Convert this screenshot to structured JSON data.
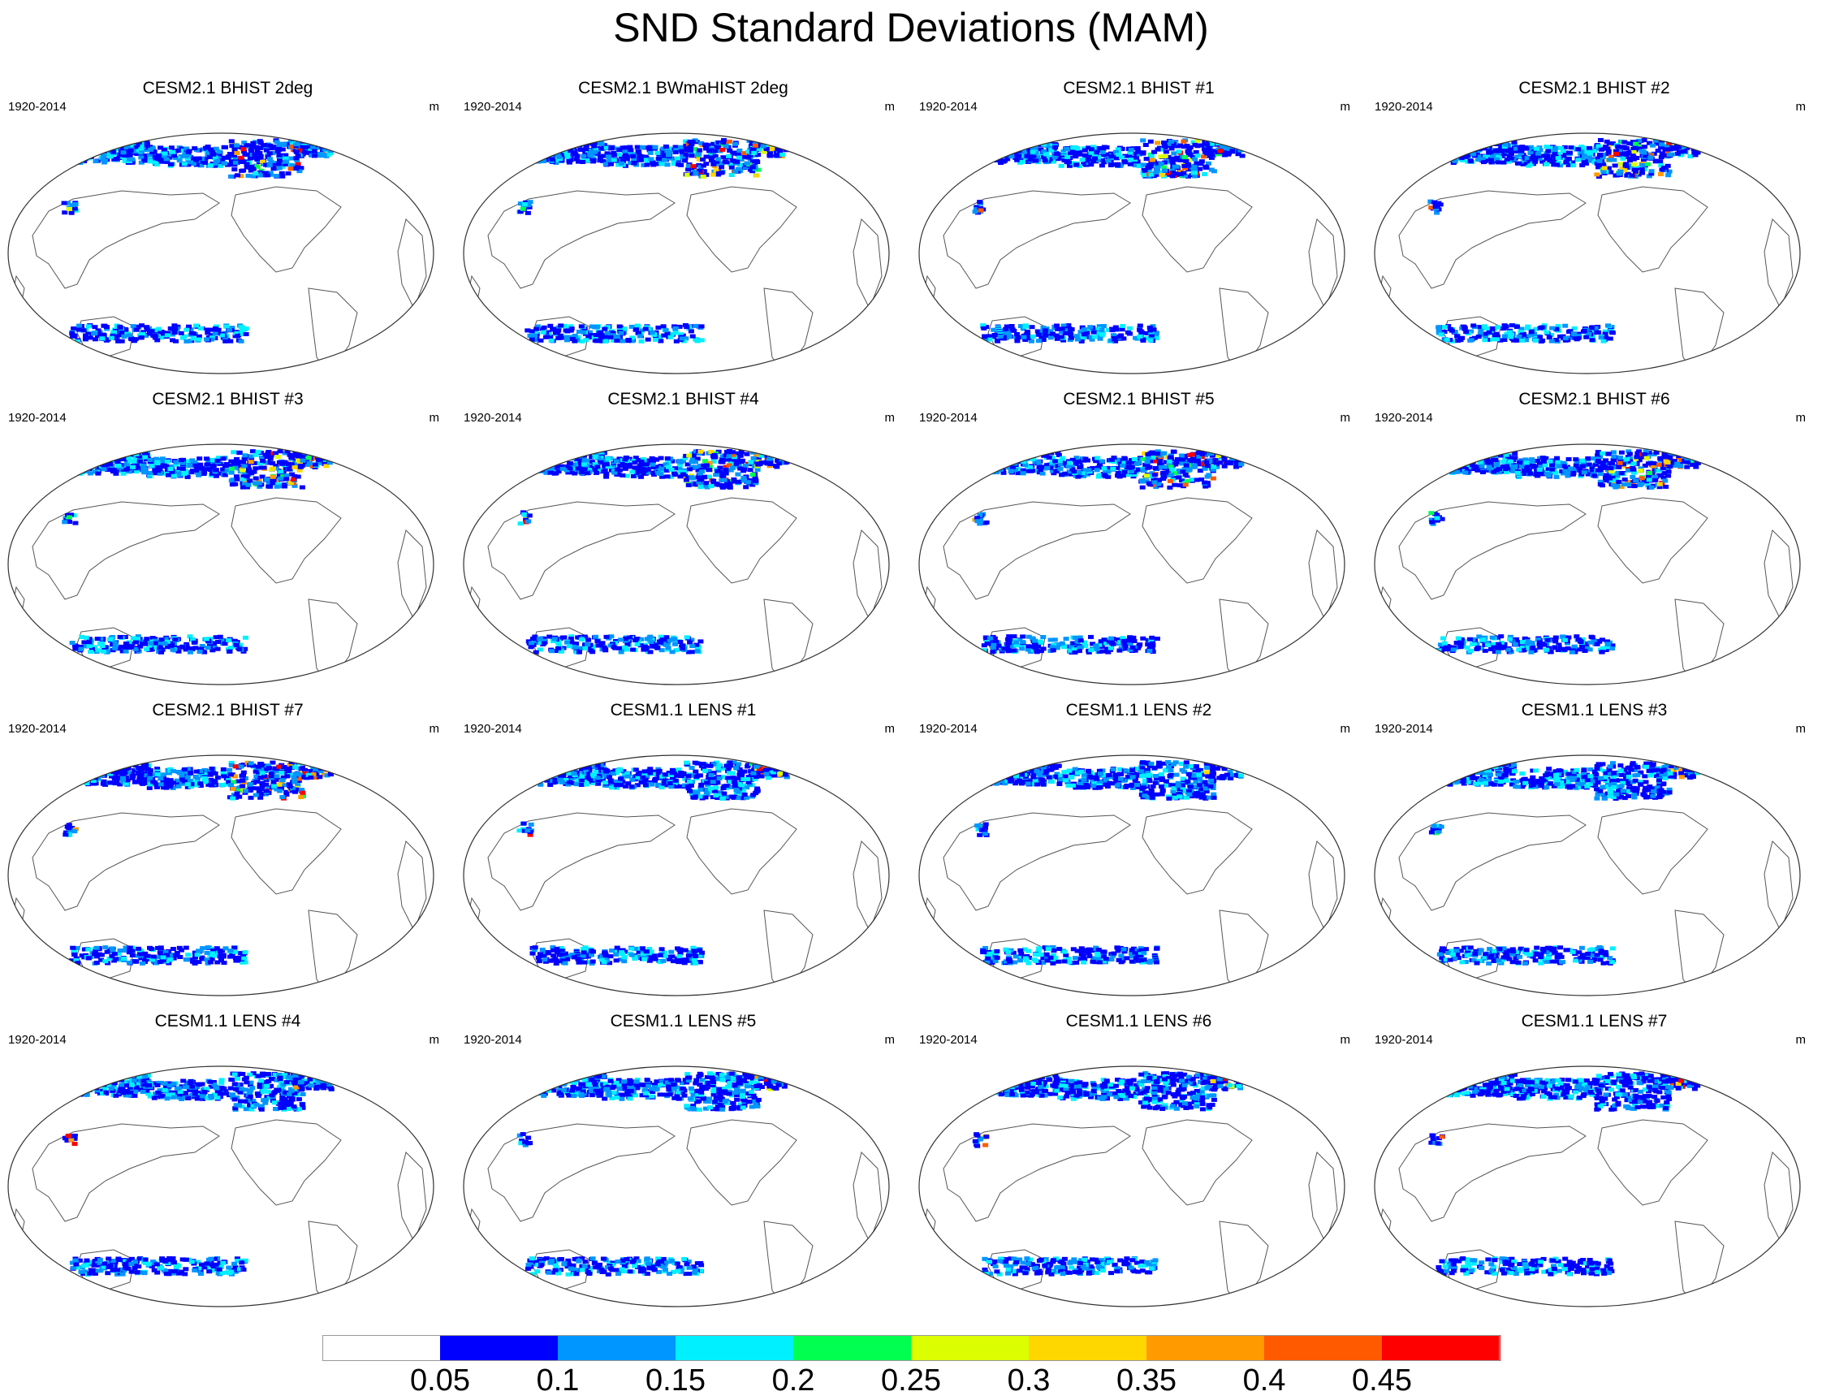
{
  "title": "SND Standard Deviations (MAM)",
  "panels": [
    {
      "title": "CESM2.1 BHIST 2deg",
      "left_label": "1920-2014",
      "right_label": "m",
      "model": "cesm2",
      "seed": 1
    },
    {
      "title": "CESM2.1 BWmaHIST 2deg",
      "left_label": "1920-2014",
      "right_label": "m",
      "model": "cesm2",
      "seed": 2
    },
    {
      "title": "CESM2.1 BHIST #1",
      "left_label": "1920-2014",
      "right_label": "m",
      "model": "cesm2",
      "seed": 3
    },
    {
      "title": "CESM2.1 BHIST #2",
      "left_label": "1920-2014",
      "right_label": "m",
      "model": "cesm2",
      "seed": 4
    },
    {
      "title": "CESM2.1 BHIST #3",
      "left_label": "1920-2014",
      "right_label": "m",
      "model": "cesm2",
      "seed": 5
    },
    {
      "title": "CESM2.1 BHIST #4",
      "left_label": "1920-2014",
      "right_label": "m",
      "model": "cesm2",
      "seed": 6
    },
    {
      "title": "CESM2.1 BHIST #5",
      "left_label": "1920-2014",
      "right_label": "m",
      "model": "cesm2",
      "seed": 7
    },
    {
      "title": "CESM2.1 BHIST #6",
      "left_label": "1920-2014",
      "right_label": "m",
      "model": "cesm2",
      "seed": 8
    },
    {
      "title": "CESM2.1 BHIST #7",
      "left_label": "1920-2014",
      "right_label": "m",
      "model": "cesm2",
      "seed": 9
    },
    {
      "title": "CESM1.1 LENS #1",
      "left_label": "1920-2014",
      "right_label": "m",
      "model": "cesm1",
      "seed": 10
    },
    {
      "title": "CESM1.1 LENS #2",
      "left_label": "1920-2014",
      "right_label": "m",
      "model": "cesm1",
      "seed": 11
    },
    {
      "title": "CESM1.1 LENS #3",
      "left_label": "1920-2014",
      "right_label": "m",
      "model": "cesm1",
      "seed": 12
    },
    {
      "title": "CESM1.1 LENS #4",
      "left_label": "1920-2014",
      "right_label": "m",
      "model": "cesm1",
      "seed": 13
    },
    {
      "title": "CESM1.1 LENS #5",
      "left_label": "1920-2014",
      "right_label": "m",
      "model": "cesm1",
      "seed": 14
    },
    {
      "title": "CESM1.1 LENS #6",
      "left_label": "1920-2014",
      "right_label": "m",
      "model": "cesm1",
      "seed": 15
    },
    {
      "title": "CESM1.1 LENS #7",
      "left_label": "1920-2014",
      "right_label": "m",
      "model": "cesm1",
      "seed": 16
    }
  ],
  "colorbar": {
    "levels": [
      "0.05",
      "0.1",
      "0.15",
      "0.2",
      "0.25",
      "0.3",
      "0.35",
      "0.4",
      "0.45"
    ],
    "colors": [
      "#ffffff",
      "#0000ff",
      "#0096ff",
      "#00f0ff",
      "#00ff50",
      "#dcff00",
      "#ffd700",
      "#ff9b00",
      "#ff5a00",
      "#ff0000"
    ]
  }
}
